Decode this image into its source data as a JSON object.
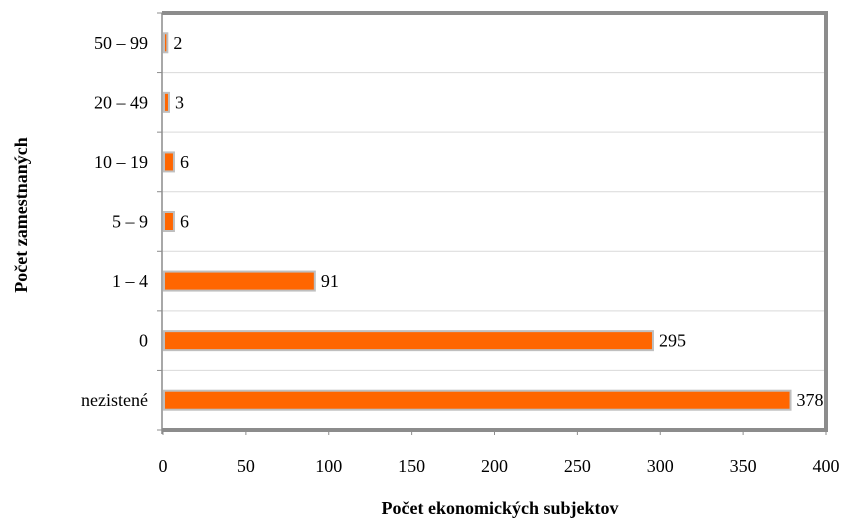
{
  "chart_data": {
    "type": "bar",
    "orientation": "horizontal",
    "categories": [
      "nezistené",
      "0",
      "1 – 4",
      "5 – 9",
      "10 – 19",
      "20 – 49",
      "50 – 99"
    ],
    "values": [
      378,
      295,
      91,
      6,
      6,
      3,
      2
    ],
    "data_labels": [
      "378",
      "295",
      "91",
      "6",
      "6",
      "3",
      "2"
    ],
    "xlabel": "Počet ekonomických subjektov",
    "ylabel": "Počet zamestnaných",
    "xlim": [
      0,
      400
    ],
    "xticks": [
      0,
      50,
      100,
      150,
      200,
      250,
      300,
      350,
      400
    ],
    "xtick_labels": [
      "0",
      "50",
      "100",
      "150",
      "200",
      "250",
      "300",
      "350",
      "400"
    ],
    "grid": "horizontal",
    "legend": "none",
    "colors": {
      "bar_fill": "#ff6600",
      "bar_edge": "#bfbfbf",
      "frame": "#8c8c8c",
      "gridline": "#d9d9d9",
      "text": "#000000"
    }
  }
}
